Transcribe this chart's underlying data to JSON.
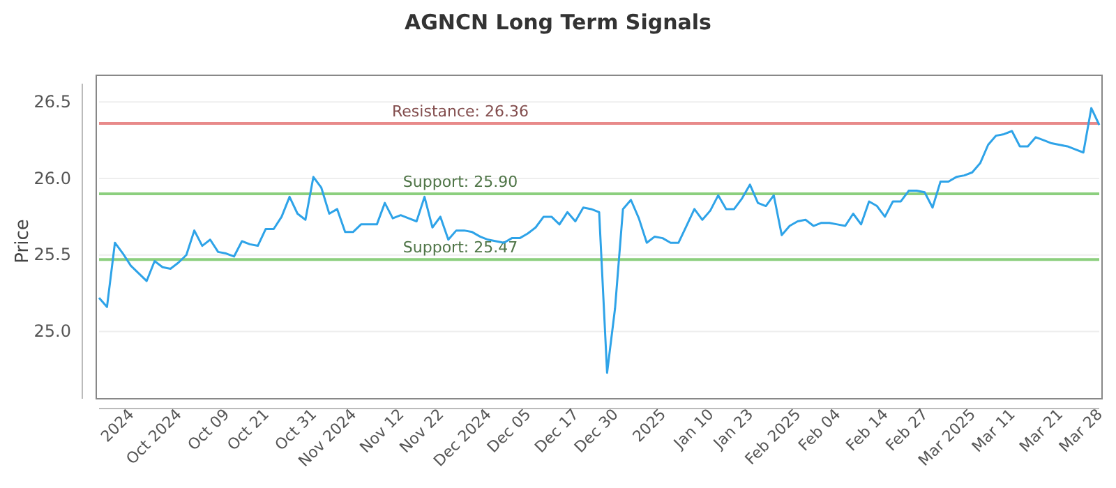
{
  "chart_data": {
    "type": "line",
    "title": "AGNCN Long Term Signals",
    "ylabel": "Price",
    "categories": [
      null,
      null,
      null,
      null,
      "2024",
      null,
      null,
      null,
      null,
      null,
      "Oct 2024",
      null,
      null,
      null,
      null,
      null,
      "Oct 09",
      null,
      null,
      null,
      null,
      "Oct 21",
      null,
      null,
      null,
      null,
      null,
      "Oct 31",
      null,
      null,
      null,
      null,
      "Nov 2024",
      null,
      null,
      null,
      null,
      null,
      "Nov 12",
      null,
      null,
      null,
      null,
      "Nov 22",
      null,
      null,
      null,
      null,
      null,
      "Dec 2024",
      null,
      null,
      null,
      null,
      "Dec 05",
      null,
      null,
      null,
      null,
      null,
      "Dec 17",
      null,
      null,
      null,
      null,
      "Dec 30",
      null,
      null,
      null,
      null,
      null,
      "2025",
      null,
      null,
      null,
      null,
      null,
      "Jan 10",
      null,
      null,
      null,
      null,
      "Jan 23",
      null,
      null,
      null,
      null,
      null,
      "Feb 2025",
      null,
      null,
      null,
      null,
      "Feb 04",
      null,
      null,
      null,
      null,
      null,
      "Feb 14",
      null,
      null,
      null,
      null,
      "Feb 27",
      null,
      null,
      null,
      null,
      null,
      "Mar 2025",
      null,
      null,
      null,
      null,
      "Mar 11",
      null,
      null,
      null,
      null,
      null,
      "Mar 21",
      null,
      null,
      null,
      null,
      "Mar 28"
    ],
    "series": [
      {
        "color": "#2ea3e8",
        "values": [
          25.22,
          25.16,
          25.58,
          25.51,
          25.43,
          25.38,
          25.33,
          25.46,
          25.42,
          25.41,
          25.45,
          25.5,
          25.66,
          25.56,
          25.6,
          25.52,
          25.51,
          25.49,
          25.59,
          25.57,
          25.56,
          25.67,
          25.67,
          25.75,
          25.88,
          25.77,
          25.73,
          26.01,
          25.94,
          25.77,
          25.8,
          25.65,
          25.65,
          25.7,
          25.7,
          25.7,
          25.84,
          25.74,
          25.76,
          25.74,
          25.72,
          25.88,
          25.68,
          25.75,
          25.6,
          25.66,
          25.66,
          25.65,
          25.62,
          25.6,
          25.59,
          25.58,
          25.61,
          25.61,
          25.64,
          25.68,
          25.75,
          25.75,
          25.7,
          25.78,
          25.72,
          25.81,
          25.8,
          25.78,
          24.73,
          25.15,
          25.8,
          25.86,
          25.74,
          25.58,
          25.62,
          25.61,
          25.58,
          25.58,
          25.69,
          25.8,
          25.73,
          25.79,
          25.89,
          25.8,
          25.8,
          25.87,
          25.96,
          25.84,
          25.82,
          25.89,
          25.63,
          25.69,
          25.72,
          25.73,
          25.69,
          25.71,
          25.71,
          25.7,
          25.69,
          25.77,
          25.7,
          25.85,
          25.82,
          25.75,
          25.85,
          25.85,
          25.92,
          25.92,
          25.91,
          25.81,
          25.98,
          25.98,
          26.01,
          26.02,
          26.04,
          26.1,
          26.22,
          26.28,
          26.29,
          26.31,
          26.21,
          26.21,
          26.27,
          26.25,
          26.23,
          26.22,
          26.21,
          26.19,
          26.17,
          26.46,
          26.35
        ]
      }
    ],
    "ylim": [
      24.56,
      26.62
    ],
    "yticks": [
      {
        "value": 25,
        "label": "25.0"
      },
      {
        "value": 25.5,
        "label": "25.5"
      },
      {
        "value": 26,
        "label": "26.0"
      },
      {
        "value": 26.5,
        "label": "26.5"
      }
    ],
    "grid": "y",
    "marker": "none",
    "line_style": "solid",
    "ref_lines": [
      {
        "axis": "y",
        "value": 26.36,
        "label": "Resistance: 26.36",
        "color": "#e88a8a"
      },
      {
        "axis": "y",
        "value": 25.9,
        "label": "Support: 25.90",
        "color": "#8ccf7e"
      },
      {
        "axis": "y",
        "value": 25.47,
        "label": "Support: 25.47",
        "color": "#8ccf7e"
      }
    ]
  }
}
